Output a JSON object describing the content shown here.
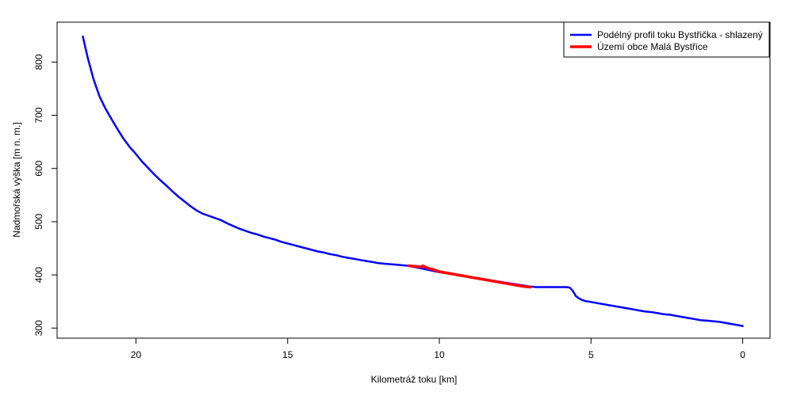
{
  "chart_data": {
    "type": "line",
    "title": "",
    "xlabel": "Kilometráž toku [km]",
    "ylabel": "Nadmořská výška [m n. m.]",
    "xlim": [
      22.6,
      -0.9
    ],
    "ylim": [
      281,
      875
    ],
    "x_ticks": [
      20,
      15,
      10,
      5,
      0
    ],
    "x_tick_labels": [
      "20",
      "15",
      "10",
      "5",
      "0"
    ],
    "y_ticks": [
      300,
      400,
      500,
      600,
      700,
      800
    ],
    "y_tick_labels": [
      "300",
      "400",
      "500",
      "600",
      "700",
      "800"
    ],
    "grid": false,
    "legend_position": "top-right",
    "series": [
      {
        "name": "Podélný profil toku Bystřička - shlazený",
        "color": "#0000ff",
        "x": [
          21.75,
          21.6,
          21.4,
          21.2,
          21.0,
          20.8,
          20.6,
          20.4,
          20.2,
          20.0,
          19.8,
          19.6,
          19.4,
          19.2,
          19.0,
          18.8,
          18.6,
          18.4,
          18.2,
          18.0,
          17.8,
          17.6,
          17.4,
          17.2,
          17.0,
          16.8,
          16.6,
          16.4,
          16.2,
          16.0,
          15.8,
          15.6,
          15.4,
          15.2,
          15.0,
          14.8,
          14.6,
          14.4,
          14.2,
          14.0,
          13.8,
          13.6,
          13.4,
          13.2,
          13.0,
          12.8,
          12.6,
          12.4,
          12.2,
          12.0,
          11.8,
          11.6,
          11.4,
          11.2,
          11.0,
          10.0,
          7.0,
          6.8,
          6.6,
          6.4,
          6.2,
          6.0,
          5.8,
          5.7,
          5.6,
          5.5,
          5.4,
          5.3,
          5.2,
          5.0,
          4.8,
          4.6,
          4.4,
          4.2,
          4.0,
          3.8,
          3.6,
          3.4,
          3.2,
          3.0,
          2.8,
          2.6,
          2.4,
          2.2,
          2.0,
          1.8,
          1.6,
          1.4,
          1.2,
          1.0,
          0.8,
          0.6,
          0.4,
          0.2,
          0.0
        ],
        "y": [
          848,
          810,
          768,
          735,
          712,
          692,
          673,
          655,
          640,
          627,
          613,
          601,
          589,
          578,
          568,
          557,
          547,
          538,
          529,
          521,
          515,
          511,
          507,
          503,
          497,
          492,
          487,
          483,
          479,
          476,
          472,
          469,
          466,
          462,
          459,
          456,
          453,
          450,
          447,
          444,
          442,
          439,
          437,
          434,
          432,
          430,
          428,
          426,
          424,
          422,
          421,
          420,
          419,
          418,
          417,
          405,
          378,
          377,
          377,
          377,
          377,
          377,
          377,
          376,
          370,
          360,
          356,
          353,
          351,
          349,
          347,
          345,
          343,
          341,
          339,
          337,
          335,
          333,
          331,
          330,
          328,
          326,
          325,
          323,
          321,
          319,
          317,
          315,
          314,
          313,
          312,
          310,
          308,
          306,
          304
        ]
      },
      {
        "name": "Území obce Malá Bystřice",
        "color": "#ff0000",
        "x": [
          11.0,
          10.8,
          10.6,
          10.55,
          10.4,
          10.2,
          10.0,
          9.8,
          9.6,
          9.4,
          9.2,
          9.0,
          8.8,
          8.6,
          8.4,
          8.2,
          8.0,
          7.8,
          7.6,
          7.4,
          7.2,
          7.0
        ],
        "y": [
          417,
          416,
          415,
          417,
          413,
          410,
          406,
          404,
          402,
          400,
          398,
          396,
          394,
          392,
          390,
          388,
          386,
          384,
          382,
          380,
          378,
          377
        ]
      }
    ]
  }
}
